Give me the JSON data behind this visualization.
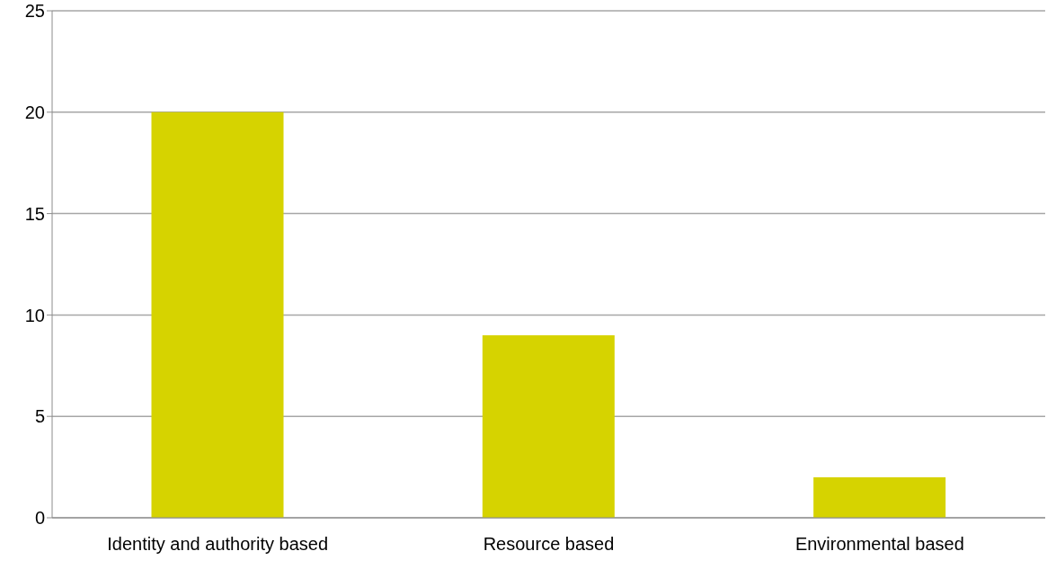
{
  "chart_data": {
    "type": "bar",
    "categories": [
      "Identity and authority based",
      "Resource based",
      "Environmental based"
    ],
    "values": [
      20,
      9,
      2
    ],
    "color": "#d6d300",
    "ylim": [
      0,
      25
    ],
    "yticks": [
      0,
      5,
      10,
      15,
      20,
      25
    ],
    "grid": "y"
  }
}
